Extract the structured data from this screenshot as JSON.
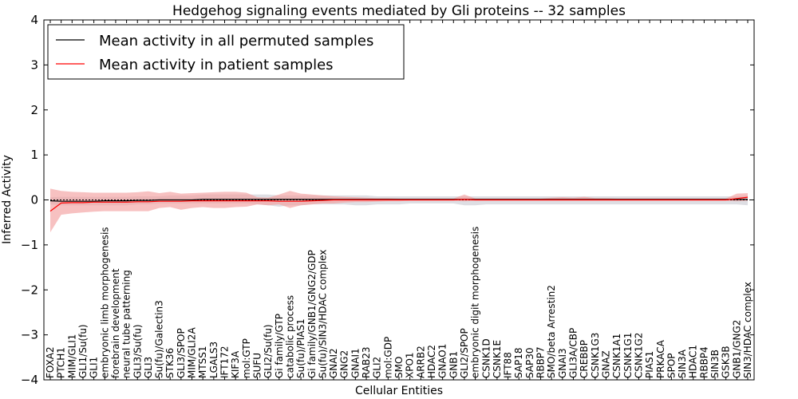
{
  "chart_data": {
    "type": "line",
    "title": "Hedgehog signaling events mediated by Gli proteins -- 32 samples",
    "xlabel": "Cellular Entities",
    "ylabel": "Inferred Activity",
    "ylim": [
      -4,
      4
    ],
    "yticks": [
      -4,
      -3,
      -2,
      -1,
      0,
      1,
      2,
      3,
      4
    ],
    "ytick_labels": [
      "−4",
      "−3",
      "−2",
      "−1",
      "0",
      "1",
      "2",
      "3",
      "4"
    ],
    "legend_position": "top-left",
    "categories": [
      "FOXA2",
      "PTCH1",
      "MIM/GLI1",
      "GLI1/Su(fu)",
      "GLI1",
      "embryonic limb morphogenesis",
      "forebrain development",
      "neural tube patterning",
      "GLI3/Su(fu)",
      "GLI3",
      "Su(fu)/Galectin3",
      "STK36",
      "GLI3/SPOP",
      "MIM/GLI2A",
      "MTSS1",
      "LGALS3",
      "IFT172",
      "KIF3A",
      "mol:GTP",
      "SUFU",
      "GLI2/Su(fu)",
      "Gi family/GTP",
      "catabolic process",
      "Su(fu)/PIAS1",
      "Gi family/GNB1/GNG2/GDP",
      "Su(fu)/SIN3/HDAC complex",
      "GNAI2",
      "GNG2",
      "GNAI1",
      "RAB23",
      "GLI2",
      "mol:GDP",
      "SMO",
      "XPO1",
      "ARRB2",
      "HDAC2",
      "GNAO1",
      "GNB1",
      "GLI2/SPOP",
      "embryonic digit morphogenesis",
      "CSNK1D",
      "CSNK1E",
      "IFT88",
      "SAP18",
      "SAP30",
      "RBBP7",
      "SMO/beta Arrestin2",
      "GNAI3",
      "GLI3A/CBP",
      "CREBBP",
      "CSNK1G3",
      "GNAZ",
      "CSNK1A1",
      "CSNK1G1",
      "CSNK1G2",
      "PIAS1",
      "PRKACA",
      "SPOP",
      "SIN3A",
      "HDAC1",
      "RBBP4",
      "SIN3B",
      "GSK3B",
      "GNB1/GNG2",
      "SIN3/HDAC complex"
    ],
    "series": [
      {
        "name": "Mean activity in all permuted samples",
        "color": "#000000",
        "values": [
          -0.02,
          -0.03,
          -0.03,
          -0.03,
          -0.03,
          -0.02,
          -0.02,
          -0.02,
          -0.01,
          -0.01,
          0.0,
          0.0,
          0.0,
          0.0,
          0.01,
          0.01,
          0.01,
          0.01,
          0.01,
          0.01,
          0.01,
          0.01,
          0.01,
          0.01,
          0.01,
          0.01,
          0.01,
          0.01,
          0.01,
          0.01,
          0.01,
          0.01,
          0.01,
          0.01,
          0.01,
          0.01,
          0.01,
          0.01,
          0.01,
          0.01,
          0.01,
          0.01,
          0.01,
          0.01,
          0.01,
          0.01,
          0.01,
          0.01,
          0.01,
          0.01,
          0.01,
          0.01,
          0.01,
          0.01,
          0.01,
          0.01,
          0.01,
          0.01,
          0.01,
          0.01,
          0.01,
          0.01,
          0.01,
          0.01,
          0.01
        ],
        "band_color": "#d3d3d9",
        "band_lower": [
          -0.1,
          -0.12,
          -0.12,
          -0.12,
          -0.12,
          -0.12,
          -0.12,
          -0.12,
          -0.1,
          -0.1,
          -0.08,
          -0.08,
          -0.08,
          -0.08,
          -0.08,
          -0.08,
          -0.08,
          -0.08,
          -0.08,
          -0.1,
          -0.12,
          -0.15,
          -0.12,
          -0.12,
          -0.1,
          -0.1,
          -0.1,
          -0.1,
          -0.12,
          -0.12,
          -0.1,
          -0.1,
          -0.1,
          -0.08,
          -0.08,
          -0.08,
          -0.08,
          -0.08,
          -0.12,
          -0.12,
          -0.1,
          -0.1,
          -0.1,
          -0.1,
          -0.1,
          -0.1,
          -0.1,
          -0.1,
          -0.1,
          -0.1,
          -0.1,
          -0.1,
          -0.1,
          -0.1,
          -0.1,
          -0.1,
          -0.1,
          -0.1,
          -0.1,
          -0.1,
          -0.1,
          -0.1,
          -0.1,
          -0.1,
          -0.12
        ],
        "band_upper": [
          0.06,
          0.07,
          0.07,
          0.07,
          0.07,
          0.07,
          0.07,
          0.07,
          0.08,
          0.08,
          0.08,
          0.1,
          0.1,
          0.1,
          0.12,
          0.12,
          0.12,
          0.12,
          0.12,
          0.12,
          0.12,
          0.1,
          0.1,
          0.1,
          0.1,
          0.1,
          0.1,
          0.1,
          0.1,
          0.1,
          0.08,
          0.08,
          0.08,
          0.08,
          0.08,
          0.08,
          0.08,
          0.08,
          0.08,
          0.08,
          0.08,
          0.08,
          0.08,
          0.08,
          0.08,
          0.08,
          0.08,
          0.08,
          0.08,
          0.08,
          0.08,
          0.08,
          0.08,
          0.08,
          0.08,
          0.08,
          0.08,
          0.08,
          0.08,
          0.08,
          0.08,
          0.08,
          0.08,
          0.08,
          0.1
        ]
      },
      {
        "name": "Mean activity in patient samples",
        "color": "#ff0000",
        "values": [
          -0.25,
          -0.07,
          -0.06,
          -0.06,
          -0.05,
          -0.05,
          -0.05,
          -0.05,
          -0.04,
          -0.04,
          -0.03,
          -0.03,
          -0.03,
          -0.02,
          -0.02,
          -0.02,
          -0.02,
          -0.02,
          -0.02,
          -0.02,
          -0.02,
          -0.03,
          -0.03,
          -0.03,
          -0.02,
          -0.01,
          0.0,
          0.0,
          0.0,
          0.0,
          0.0,
          0.0,
          0.0,
          0.0,
          0.0,
          0.0,
          0.0,
          0.0,
          0.01,
          0.0,
          0.0,
          0.0,
          0.0,
          0.0,
          0.0,
          0.0,
          0.0,
          0.0,
          0.0,
          0.0,
          0.0,
          0.0,
          0.0,
          0.0,
          0.0,
          0.0,
          0.0,
          0.0,
          0.0,
          0.0,
          0.0,
          0.0,
          0.0,
          0.03,
          0.06
        ],
        "band_color": "#f2a0a0",
        "band_lower": [
          -0.72,
          -0.33,
          -0.3,
          -0.28,
          -0.26,
          -0.25,
          -0.25,
          -0.25,
          -0.25,
          -0.25,
          -0.18,
          -0.16,
          -0.22,
          -0.18,
          -0.16,
          -0.18,
          -0.18,
          -0.16,
          -0.15,
          -0.1,
          -0.12,
          -0.1,
          -0.18,
          -0.12,
          -0.1,
          -0.08,
          -0.08,
          -0.06,
          -0.05,
          -0.05,
          -0.04,
          -0.03,
          -0.03,
          -0.02,
          -0.02,
          -0.02,
          -0.02,
          -0.02,
          -0.03,
          -0.02,
          -0.02,
          -0.02,
          -0.02,
          -0.02,
          -0.02,
          -0.02,
          -0.02,
          -0.02,
          -0.02,
          -0.02,
          -0.02,
          -0.02,
          -0.02,
          -0.02,
          -0.02,
          -0.02,
          -0.02,
          -0.02,
          -0.02,
          -0.02,
          -0.02,
          -0.02,
          -0.02,
          -0.03,
          -0.02
        ],
        "band_upper": [
          0.25,
          0.2,
          0.18,
          0.17,
          0.16,
          0.16,
          0.16,
          0.16,
          0.17,
          0.19,
          0.15,
          0.18,
          0.14,
          0.15,
          0.16,
          0.17,
          0.18,
          0.18,
          0.16,
          0.06,
          0.05,
          0.12,
          0.2,
          0.14,
          0.12,
          0.1,
          0.08,
          0.07,
          0.06,
          0.05,
          0.04,
          0.04,
          0.03,
          0.03,
          0.03,
          0.03,
          0.03,
          0.03,
          0.12,
          0.03,
          0.03,
          0.03,
          0.03,
          0.03,
          0.03,
          0.03,
          0.05,
          0.06,
          0.05,
          0.07,
          0.04,
          0.04,
          0.03,
          0.03,
          0.03,
          0.03,
          0.03,
          0.03,
          0.03,
          0.03,
          0.03,
          0.03,
          0.03,
          0.14,
          0.15
        ]
      }
    ]
  }
}
